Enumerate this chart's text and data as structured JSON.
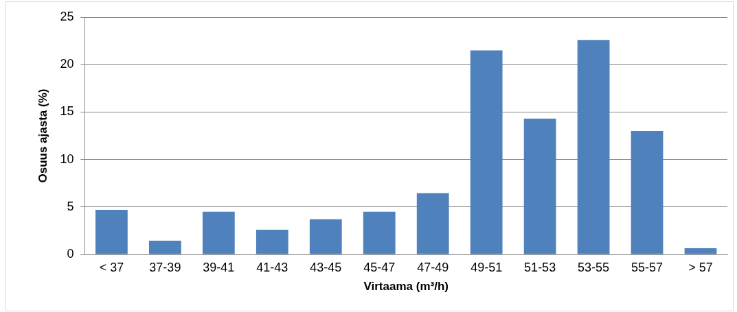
{
  "chart_data": {
    "type": "bar",
    "xlabel": "Virtaama (m³/h)",
    "ylabel": "Osuus ajasta (%)",
    "categories": [
      "< 37",
      "37-39",
      "39-41",
      "41-43",
      "43-45",
      "45-47",
      "47-49",
      "49-51",
      "51-53",
      "53-55",
      "55-57",
      "> 57"
    ],
    "values": [
      4.7,
      1.45,
      4.5,
      2.6,
      3.7,
      4.5,
      6.45,
      21.5,
      14.3,
      22.6,
      13.0,
      0.65
    ],
    "color": "#4f81bd",
    "ylim": [
      0,
      25
    ],
    "yticks": [
      0,
      5,
      10,
      15,
      20,
      25
    ],
    "grid": "y",
    "legend": false
  }
}
